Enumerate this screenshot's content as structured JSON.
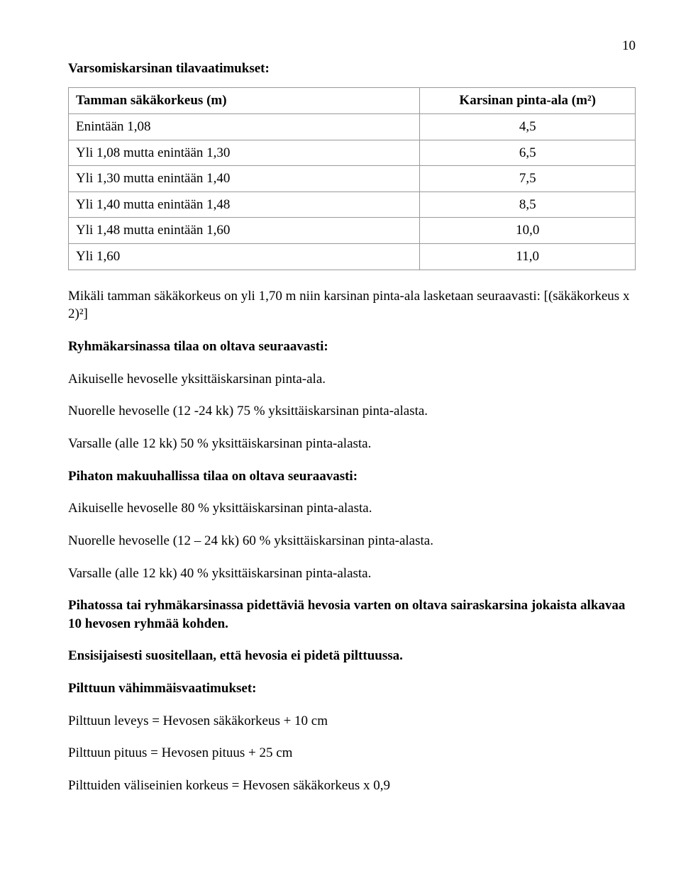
{
  "pageNumber": "10",
  "heading1": "Varsomiskarsinan tilavaatimukset:",
  "table": {
    "columns": [
      "Tamman säkäkorkeus (m)",
      "Karsinan pinta-ala (m²)"
    ],
    "rows": [
      [
        "Enintään 1,08",
        "4,5"
      ],
      [
        "Yli 1,08 mutta enintään 1,30",
        "6,5"
      ],
      [
        "Yli 1,30 mutta enintään 1,40",
        "7,5"
      ],
      [
        "Yli 1,40 mutta enintään 1,48",
        "8,5"
      ],
      [
        "Yli 1,48 mutta enintään 1,60",
        "10,0"
      ],
      [
        "Yli 1,60",
        "11,0"
      ]
    ]
  },
  "p_formula": "Mikäli tamman säkäkorkeus on yli 1,70 m niin karsinan pinta-ala lasketaan seuraavasti: [(säkäkorkeus x 2)²]",
  "h_ryhma": "Ryhmäkarsinassa tilaa on oltava seuraavasti:",
  "p_ryhma1": "Aikuiselle hevoselle yksittäiskarsinan pinta-ala.",
  "p_ryhma2": "Nuorelle hevoselle (12 -24 kk) 75 % yksittäiskarsinan pinta-alasta.",
  "p_ryhma3": "Varsalle (alle 12 kk) 50 % yksittäiskarsinan pinta-alasta.",
  "h_pihatto": "Pihaton makuuhallissa tilaa on oltava seuraavasti:",
  "p_pihatto1": "Aikuiselle hevoselle 80 % yksittäiskarsinan pinta-alasta.",
  "p_pihatto2": "Nuorelle hevoselle (12 – 24 kk) 60 % yksittäiskarsinan pinta-alasta.",
  "p_pihatto3": "Varsalle (alle 12 kk) 40 % yksittäiskarsinan pinta-alasta.",
  "p_sairas": "Pihatossa tai ryhmäkarsinassa pidettäviä hevosia varten on oltava sairaskarsina jokaista alkavaa 10 hevosen ryhmää kohden.",
  "p_ensisij": "Ensisijaisesti suositellaan, että hevosia ei pidetä pilttuussa.",
  "h_pilttuu": "Pilttuun vähimmäisvaatimukset:",
  "p_pilttuu1": "Pilttuun leveys = Hevosen säkäkorkeus + 10 cm",
  "p_pilttuu2": "Pilttuun pituus = Hevosen pituus + 25 cm",
  "p_pilttuu3": "Pilttuiden väliseinien korkeus = Hevosen säkäkorkeus x 0,9"
}
